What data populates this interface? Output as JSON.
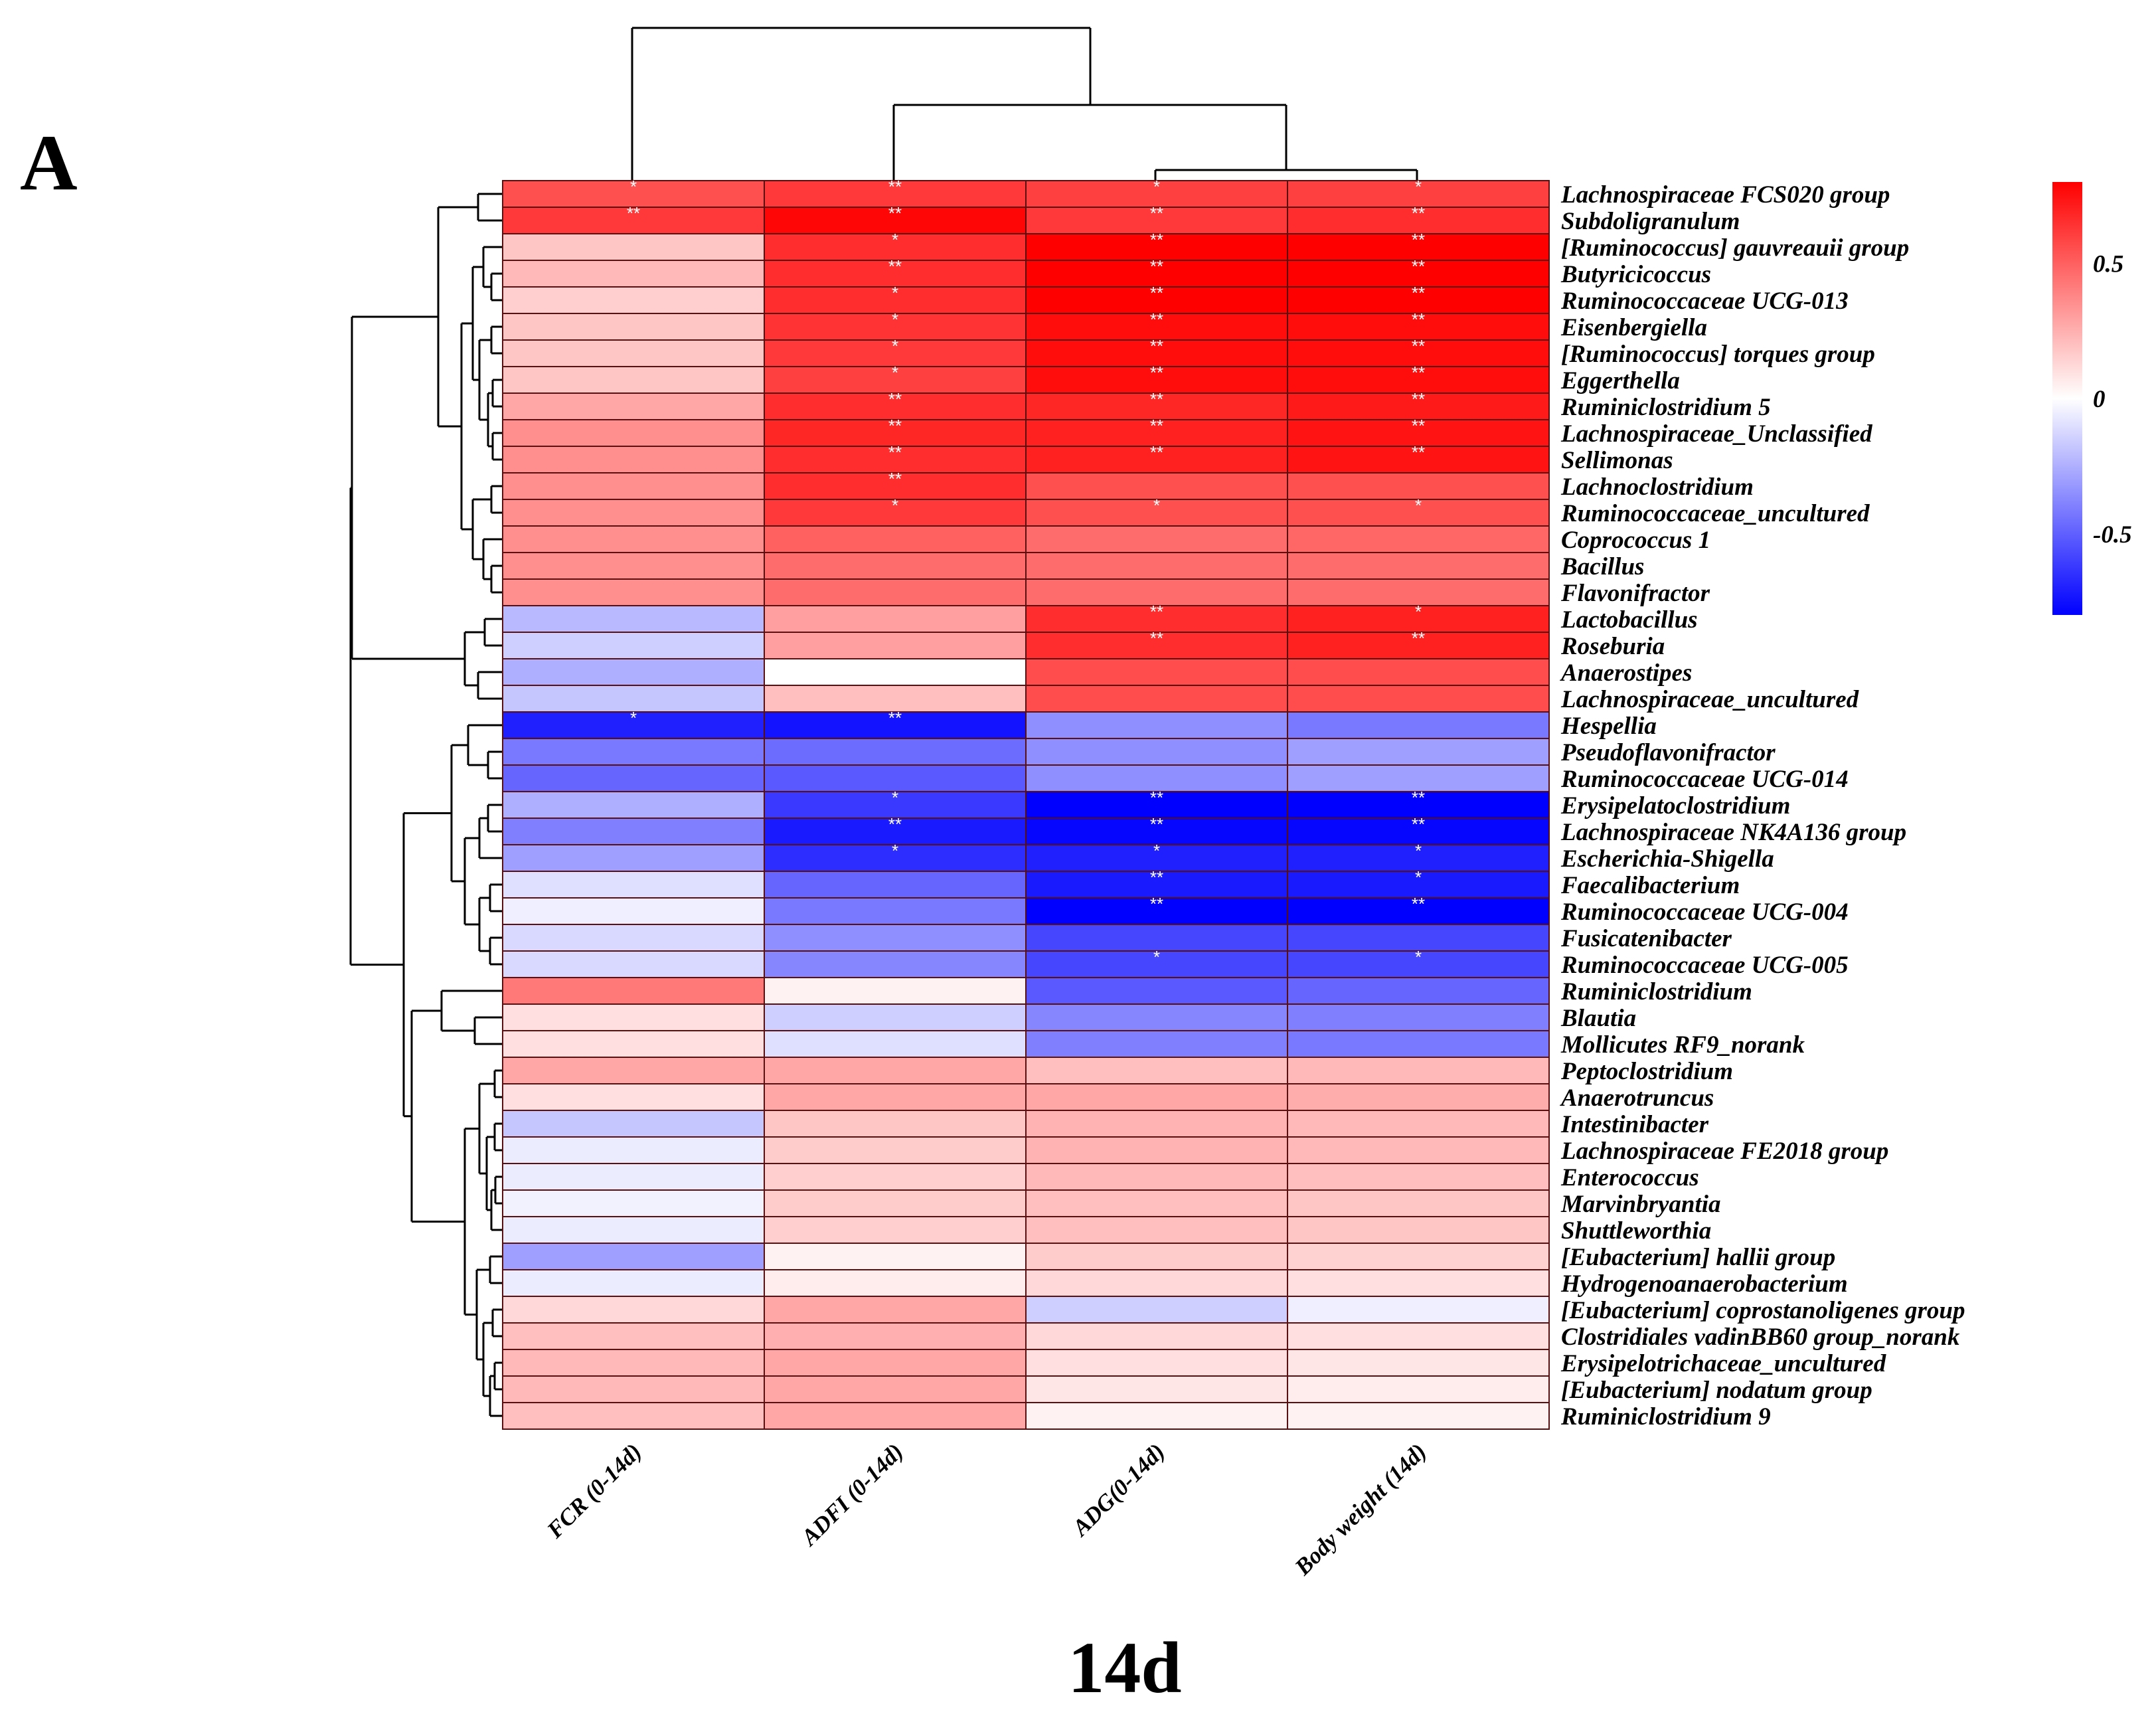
{
  "panel_label": "A",
  "caption": "14d",
  "chart_data": {
    "type": "heatmap",
    "title": "14d",
    "columns": [
      "FCR (0-14d)",
      "ADFI (0-14d)",
      "ADG(0-14d)",
      "Body weight (14d)"
    ],
    "rows": [
      "Lachnospiraceae FCS020 group",
      "Subdoligranulum",
      "[Ruminococcus] gauvreauii group",
      "Butyricicoccus",
      "Ruminococcaceae UCG-013",
      "Eisenbergiella",
      "[Ruminococcus] torques group",
      "Eggerthella",
      "Ruminiclostridium 5",
      "Lachnospiraceae_Unclassified",
      "Sellimonas",
      "Lachnoclostridium",
      "Ruminococcaceae_uncultured",
      "Coprococcus 1",
      "Bacillus",
      "Flavonifractor",
      "Lactobacillus",
      "Roseburia",
      "Anaerostipes",
      "Lachnospiraceae_uncultured",
      "Hespellia",
      "Pseudoflavonifractor",
      "Ruminococcaceae UCG-014",
      "Erysipelatoclostridium",
      "Lachnospiraceae NK4A136 group",
      "Escherichia-Shigella",
      "Faecalibacterium",
      "Ruminococcaceae UCG-004",
      "Fusicatenibacter",
      "Ruminococcaceae UCG-005",
      "Ruminiclostridium",
      "Blautia",
      "Mollicutes RF9_norank",
      "Peptoclostridium",
      "Anaerotruncus",
      "Intestinibacter",
      "Lachnospiraceae FE2018 group",
      "Enterococcus",
      "Marvinbryantia",
      "Shuttleworthia",
      "[Eubacterium] hallii group",
      "Hydrogenoanaerobacterium",
      "[Eubacterium] coprostanoligenes group",
      "Clostridiales vadinBB60 group_norank",
      "Erysipelotrichaceae_uncultured",
      "[Eubacterium] nodatum group",
      "Ruminiclostridium 9"
    ],
    "values": [
      [
        0.55,
        0.62,
        0.6,
        0.6
      ],
      [
        0.62,
        0.78,
        0.62,
        0.66
      ],
      [
        0.18,
        0.66,
        0.82,
        0.84
      ],
      [
        0.22,
        0.66,
        0.84,
        0.86
      ],
      [
        0.15,
        0.66,
        0.86,
        0.88
      ],
      [
        0.18,
        0.64,
        0.76,
        0.76
      ],
      [
        0.18,
        0.62,
        0.76,
        0.76
      ],
      [
        0.18,
        0.6,
        0.76,
        0.76
      ],
      [
        0.28,
        0.66,
        0.68,
        0.72
      ],
      [
        0.35,
        0.68,
        0.7,
        0.74
      ],
      [
        0.35,
        0.66,
        0.7,
        0.74
      ],
      [
        0.35,
        0.66,
        0.55,
        0.55
      ],
      [
        0.35,
        0.62,
        0.55,
        0.55
      ],
      [
        0.35,
        0.5,
        0.46,
        0.48
      ],
      [
        0.35,
        0.46,
        0.46,
        0.46
      ],
      [
        0.35,
        0.46,
        0.46,
        0.46
      ],
      [
        -0.22,
        0.3,
        0.66,
        0.7
      ],
      [
        -0.15,
        0.3,
        0.66,
        0.7
      ],
      [
        -0.25,
        0.0,
        0.56,
        0.56
      ],
      [
        -0.18,
        0.2,
        0.56,
        0.56
      ],
      [
        -0.7,
        -0.74,
        -0.35,
        -0.42
      ],
      [
        -0.42,
        -0.46,
        -0.35,
        -0.3
      ],
      [
        -0.48,
        -0.52,
        -0.35,
        -0.3
      ],
      [
        -0.25,
        -0.62,
        -0.8,
        -0.8
      ],
      [
        -0.4,
        -0.72,
        -0.78,
        -0.78
      ],
      [
        -0.3,
        -0.66,
        -0.7,
        -0.7
      ],
      [
        -0.1,
        -0.48,
        -0.72,
        -0.72
      ],
      [
        -0.05,
        -0.42,
        -0.82,
        -0.82
      ],
      [
        -0.12,
        -0.35,
        -0.58,
        -0.58
      ],
      [
        -0.12,
        -0.38,
        -0.58,
        -0.58
      ],
      [
        0.42,
        0.04,
        -0.52,
        -0.48
      ],
      [
        0.1,
        -0.15,
        -0.38,
        -0.4
      ],
      [
        0.1,
        -0.1,
        -0.4,
        -0.42
      ],
      [
        0.28,
        0.28,
        0.2,
        0.22
      ],
      [
        0.1,
        0.28,
        0.28,
        0.26
      ],
      [
        -0.18,
        0.18,
        0.24,
        0.22
      ],
      [
        -0.06,
        0.16,
        0.24,
        0.22
      ],
      [
        -0.06,
        0.15,
        0.22,
        0.2
      ],
      [
        -0.04,
        0.16,
        0.2,
        0.18
      ],
      [
        -0.06,
        0.15,
        0.2,
        0.18
      ],
      [
        -0.3,
        0.04,
        0.16,
        0.14
      ],
      [
        -0.06,
        0.06,
        0.12,
        0.1
      ],
      [
        0.12,
        0.28,
        -0.15,
        -0.05
      ],
      [
        0.2,
        0.25,
        0.12,
        0.1
      ],
      [
        0.22,
        0.28,
        0.1,
        0.08
      ],
      [
        0.22,
        0.28,
        0.08,
        0.06
      ],
      [
        0.2,
        0.28,
        0.04,
        0.04
      ]
    ],
    "significance": [
      [
        "*",
        "**",
        "*",
        "*"
      ],
      [
        "**",
        "**",
        "**",
        "**"
      ],
      [
        "",
        "*",
        "**",
        "**"
      ],
      [
        "",
        "**",
        "**",
        "**"
      ],
      [
        "",
        "*",
        "**",
        "**"
      ],
      [
        "",
        "*",
        "**",
        "**"
      ],
      [
        "",
        "*",
        "**",
        "**"
      ],
      [
        "",
        "*",
        "**",
        "**"
      ],
      [
        "",
        "**",
        "**",
        "**"
      ],
      [
        "",
        "**",
        "**",
        "**"
      ],
      [
        "",
        "**",
        "**",
        "**"
      ],
      [
        "",
        "**",
        "",
        ""
      ],
      [
        "",
        "*",
        "*",
        "*"
      ],
      [
        "",
        "",
        "",
        ""
      ],
      [
        "",
        "",
        "",
        ""
      ],
      [
        "",
        "",
        "",
        ""
      ],
      [
        "",
        "",
        "**",
        "*"
      ],
      [
        "",
        "",
        "**",
        "**"
      ],
      [
        "",
        "",
        "",
        ""
      ],
      [
        "",
        "",
        "",
        ""
      ],
      [
        "*",
        "**",
        "",
        ""
      ],
      [
        "",
        "",
        "",
        ""
      ],
      [
        "",
        "",
        "",
        ""
      ],
      [
        "",
        "*",
        "**",
        "**"
      ],
      [
        "",
        "**",
        "**",
        "**"
      ],
      [
        "",
        "*",
        "*",
        "*"
      ],
      [
        "",
        "",
        "**",
        "*"
      ],
      [
        "",
        "",
        "**",
        "**"
      ],
      [
        "",
        "",
        "",
        ""
      ],
      [
        "",
        "",
        "*",
        "*"
      ],
      [
        "",
        "",
        "",
        ""
      ],
      [
        "",
        "",
        "",
        ""
      ],
      [
        "",
        "",
        "",
        ""
      ],
      [
        "",
        "",
        "",
        ""
      ],
      [
        "",
        "",
        "",
        ""
      ],
      [
        "",
        "",
        "",
        ""
      ],
      [
        "",
        "",
        "",
        ""
      ],
      [
        "",
        "",
        "",
        ""
      ],
      [
        "",
        "",
        "",
        ""
      ],
      [
        "",
        "",
        "",
        ""
      ],
      [
        "",
        "",
        "",
        ""
      ],
      [
        "",
        "",
        "",
        ""
      ],
      [
        "",
        "",
        "",
        ""
      ],
      [
        "",
        "",
        "",
        ""
      ],
      [
        "",
        "",
        "",
        ""
      ],
      [
        "",
        "",
        "",
        ""
      ],
      [
        "",
        "",
        "",
        ""
      ]
    ],
    "color_scale": {
      "range": [
        -0.8,
        0.8
      ],
      "low_color": "#0000ff",
      "mid_color": "#ffffff",
      "high_color": "#ff0000",
      "ticks": [
        0.5,
        0,
        -0.5
      ],
      "tick_labels": [
        "0.5",
        "0",
        "-0.5"
      ]
    },
    "column_order": [
      "FCR (0-14d)",
      "ADFI (0-14d)",
      "ADG(0-14d)",
      "Body weight (14d)"
    ],
    "cell_border_color": "#5a1010",
    "dendrograms": {
      "rows": true,
      "columns": true
    }
  }
}
